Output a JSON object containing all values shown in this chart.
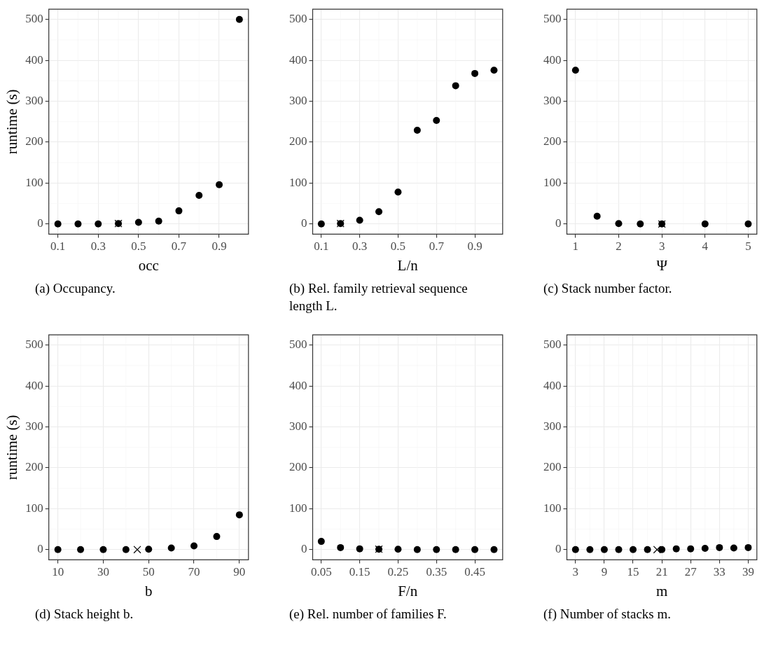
{
  "chart_data": [
    {
      "type": "scatter",
      "xlabel": "occ",
      "ylabel": "runtime (s)",
      "annotations": [
        "(a) Occupancy."
      ],
      "xlim": [
        0.055,
        1.045
      ],
      "xticks": [
        0.1,
        0.3,
        0.5,
        0.7,
        0.9
      ],
      "ylim": [
        -25,
        525
      ],
      "yticks": [
        0,
        100,
        200,
        300,
        400,
        500
      ],
      "grid": true,
      "series": [
        {
          "color": "#000000",
          "marker": "circle",
          "x": [
            0.1,
            0.2,
            0.3,
            0.4,
            0.5,
            0.6,
            0.7,
            0.8,
            0.9,
            1.0
          ],
          "values": [
            0,
            0,
            0,
            1,
            4,
            7,
            32,
            70,
            96,
            500
          ]
        },
        {
          "color": "#000000",
          "marker": "cross",
          "x": [
            0.4
          ],
          "values": [
            1
          ]
        }
      ]
    },
    {
      "type": "scatter",
      "xlabel": "L/n",
      "annotations": [
        "(b) Rel. family retrieval sequence length L."
      ],
      "xlim": [
        0.055,
        1.045
      ],
      "xticks": [
        0.1,
        0.3,
        0.5,
        0.7,
        0.9
      ],
      "ylim": [
        -25,
        525
      ],
      "yticks": [
        0,
        100,
        200,
        300,
        400,
        500
      ],
      "grid": true,
      "series": [
        {
          "color": "#000000",
          "marker": "circle",
          "x": [
            0.1,
            0.2,
            0.3,
            0.4,
            0.5,
            0.6,
            0.7,
            0.8,
            0.9,
            1.0
          ],
          "values": [
            0,
            1,
            9,
            30,
            78,
            229,
            253,
            338,
            368,
            376
          ]
        },
        {
          "color": "#000000",
          "marker": "cross",
          "x": [
            0.2
          ],
          "values": [
            1
          ]
        }
      ]
    },
    {
      "type": "scatter",
      "xlabel": "Ψ",
      "annotations": [
        "(c) Stack number factor."
      ],
      "xlim": [
        0.8,
        5.2
      ],
      "xticks": [
        1,
        2,
        3,
        4,
        5
      ],
      "ylim": [
        -25,
        525
      ],
      "yticks": [
        0,
        100,
        200,
        300,
        400,
        500
      ],
      "grid": true,
      "series": [
        {
          "color": "#000000",
          "marker": "circle",
          "x": [
            1,
            1.5,
            2,
            2.5,
            3,
            4,
            5
          ],
          "values": [
            376,
            19,
            1,
            0,
            0,
            0,
            0
          ]
        },
        {
          "color": "#000000",
          "marker": "cross",
          "x": [
            3
          ],
          "values": [
            0
          ]
        }
      ]
    },
    {
      "type": "scatter",
      "xlabel": "b",
      "ylabel": "runtime (s)",
      "annotations": [
        "(d) Stack height b."
      ],
      "xlim": [
        6,
        94
      ],
      "xticks": [
        10,
        30,
        50,
        70,
        90
      ],
      "ylim": [
        -25,
        525
      ],
      "yticks": [
        0,
        100,
        200,
        300,
        400,
        500
      ],
      "grid": true,
      "series": [
        {
          "color": "#000000",
          "marker": "circle",
          "x": [
            10,
            20,
            30,
            40,
            50,
            60,
            70,
            80,
            90
          ],
          "values": [
            0,
            0,
            0,
            0,
            1,
            4,
            9,
            32,
            85
          ]
        },
        {
          "color": "#000000",
          "marker": "cross",
          "x": [
            45
          ],
          "values": [
            0
          ]
        }
      ]
    },
    {
      "type": "scatter",
      "xlabel": "F/n",
      "annotations": [
        "(e) Rel. number of families F."
      ],
      "xlim": [
        0.0275,
        0.5225
      ],
      "xticks": [
        0.05,
        0.15,
        0.25,
        0.35,
        0.45
      ],
      "ylim": [
        -25,
        525
      ],
      "yticks": [
        0,
        100,
        200,
        300,
        400,
        500
      ],
      "grid": true,
      "series": [
        {
          "color": "#000000",
          "marker": "circle",
          "x": [
            0.05,
            0.1,
            0.15,
            0.2,
            0.25,
            0.3,
            0.35,
            0.4,
            0.45,
            0.5
          ],
          "values": [
            20,
            5,
            2,
            1,
            1,
            0,
            0,
            0,
            0,
            0
          ]
        },
        {
          "color": "#000000",
          "marker": "cross",
          "x": [
            0.2
          ],
          "values": [
            1
          ]
        }
      ]
    },
    {
      "type": "scatter",
      "xlabel": "m",
      "annotations": [
        "(f) Number of stacks m."
      ],
      "xlim": [
        1.2,
        40.8
      ],
      "xticks": [
        3,
        9,
        15,
        21,
        27,
        33,
        39
      ],
      "ylim": [
        -25,
        525
      ],
      "yticks": [
        0,
        100,
        200,
        300,
        400,
        500
      ],
      "grid": true,
      "series": [
        {
          "color": "#000000",
          "marker": "circle",
          "x": [
            3,
            6,
            9,
            12,
            15,
            18,
            21,
            24,
            27,
            30,
            33,
            36,
            39
          ],
          "values": [
            0,
            0,
            0,
            0,
            0,
            0,
            0,
            2,
            2,
            3,
            5,
            4,
            5
          ]
        },
        {
          "color": "#000000",
          "marker": "cross",
          "x": [
            20
          ],
          "values": [
            0
          ]
        }
      ]
    }
  ]
}
